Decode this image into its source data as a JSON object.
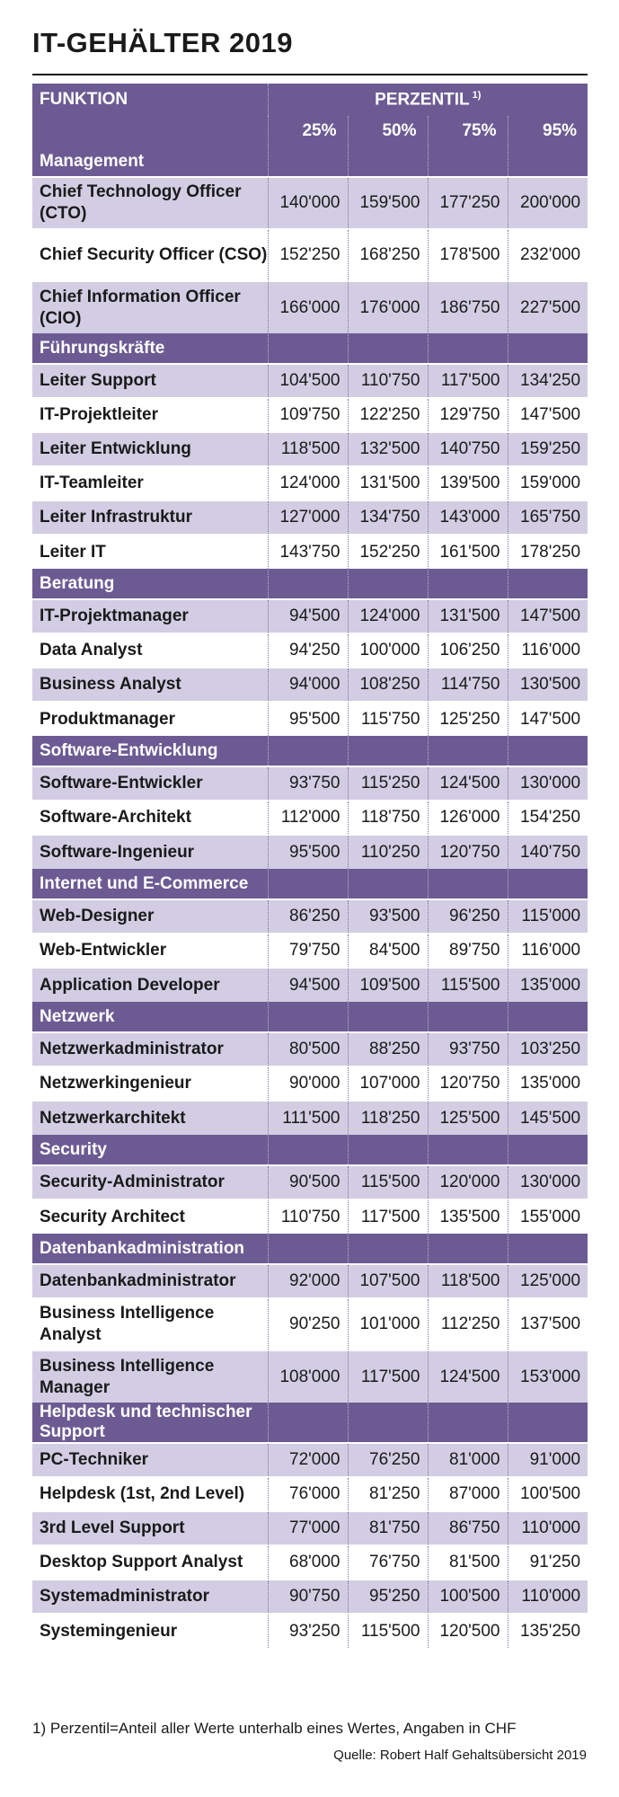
{
  "title": "IT-GEHÄLTER 2019",
  "header": {
    "function_label": "FUNKTION",
    "percentile_label": "PERZENTIL",
    "footnote_mark": "1)",
    "percentiles": [
      "25%",
      "50%",
      "75%",
      "95%"
    ]
  },
  "categories": [
    {
      "name": "Management",
      "rows": [
        {
          "function": "Chief Technology Officer (CTO)",
          "values": [
            "140'000",
            "159'500",
            "177'250",
            "200'000"
          ]
        },
        {
          "function": "Chief Security Officer (CSO)",
          "values": [
            "152'250",
            "168'250",
            "178'500",
            "232'000"
          ]
        },
        {
          "function": "Chief Information Officer (CIO)",
          "values": [
            "166'000",
            "176'000",
            "186'750",
            "227'500"
          ]
        }
      ]
    },
    {
      "name": "Führungskräfte",
      "rows": [
        {
          "function": "Leiter Support",
          "values": [
            "104'500",
            "110'750",
            "117'500",
            "134'250"
          ]
        },
        {
          "function": "IT-Projektleiter",
          "values": [
            "109'750",
            "122'250",
            "129'750",
            "147'500"
          ]
        },
        {
          "function": "Leiter Entwicklung",
          "values": [
            "118'500",
            "132'500",
            "140'750",
            "159'250"
          ]
        },
        {
          "function": "IT-Teamleiter",
          "values": [
            "124'000",
            "131'500",
            "139'500",
            "159'000"
          ]
        },
        {
          "function": "Leiter Infrastruktur",
          "values": [
            "127'000",
            "134'750",
            "143'000",
            "165'750"
          ]
        },
        {
          "function": "Leiter IT",
          "values": [
            "143'750",
            "152'250",
            "161'500",
            "178'250"
          ]
        }
      ]
    },
    {
      "name": "Beratung",
      "rows": [
        {
          "function": "IT-Projektmanager",
          "values": [
            "94'500",
            "124'000",
            "131'500",
            "147'500"
          ]
        },
        {
          "function": "Data Analyst",
          "values": [
            "94'250",
            "100'000",
            "106'250",
            "116'000"
          ]
        },
        {
          "function": "Business Analyst",
          "values": [
            "94'000",
            "108'250",
            "114'750",
            "130'500"
          ]
        },
        {
          "function": "Produktmanager",
          "values": [
            "95'500",
            "115'750",
            "125'250",
            "147'500"
          ]
        }
      ]
    },
    {
      "name": "Software-Entwicklung",
      "rows": [
        {
          "function": "Software-Entwickler",
          "values": [
            "93'750",
            "115'250",
            "124'500",
            "130'000"
          ]
        },
        {
          "function": "Software-Architekt",
          "values": [
            "112'000",
            "118'750",
            "126'000",
            "154'250"
          ]
        },
        {
          "function": "Software-Ingenieur",
          "values": [
            "95'500",
            "110'250",
            "120'750",
            "140'750"
          ]
        }
      ]
    },
    {
      "name": "Internet und E-Commerce",
      "rows": [
        {
          "function": "Web-Designer",
          "values": [
            "86'250",
            "93'500",
            "96'250",
            "115'000"
          ]
        },
        {
          "function": "Web-Entwickler",
          "values": [
            "79'750",
            "84'500",
            "89'750",
            "116'000"
          ]
        },
        {
          "function": "Application Developer",
          "values": [
            "94'500",
            "109'500",
            "115'500",
            "135'000"
          ]
        }
      ]
    },
    {
      "name": "Netzwerk",
      "rows": [
        {
          "function": "Netzwerkadministrator",
          "values": [
            "80'500",
            "88'250",
            "93'750",
            "103'250"
          ]
        },
        {
          "function": "Netzwerkingenieur",
          "values": [
            "90'000",
            "107'000",
            "120'750",
            "135'000"
          ]
        },
        {
          "function": "Netzwerkarchitekt",
          "values": [
            "111'500",
            "118'250",
            "125'500",
            "145'500"
          ]
        }
      ]
    },
    {
      "name": "Security",
      "rows": [
        {
          "function": "Security-Administrator",
          "values": [
            "90'500",
            "115'500",
            "120'000",
            "130'000"
          ]
        },
        {
          "function": "Security Architect",
          "values": [
            "110'750",
            "117'500",
            "135'500",
            "155'000"
          ]
        }
      ]
    },
    {
      "name": "Datenbankadministration",
      "rows": [
        {
          "function": "Datenbankadministrator",
          "values": [
            "92'000",
            "107'500",
            "118'500",
            "125'000"
          ]
        },
        {
          "function": "Business Intelligence Analyst",
          "values": [
            "90'250",
            "101'000",
            "112'250",
            "137'500"
          ]
        },
        {
          "function": "Business Intelligence Manager",
          "values": [
            "108'000",
            "117'500",
            "124'500",
            "153'000"
          ]
        }
      ]
    },
    {
      "name": "Helpdesk und technischer Support",
      "rows": [
        {
          "function": "PC-Techniker",
          "values": [
            "72'000",
            "76'250",
            "81'000",
            "91'000"
          ]
        },
        {
          "function": "Helpdesk (1st, 2nd Level)",
          "values": [
            "76'000",
            "81'250",
            "87'000",
            "100'500"
          ]
        },
        {
          "function": "3rd Level Support",
          "values": [
            "77'000",
            "81'750",
            "86'750",
            "110'000"
          ]
        },
        {
          "function": "Desktop Support Analyst",
          "values": [
            "68'000",
            "76'750",
            "81'500",
            "91'250"
          ]
        },
        {
          "function": "Systemadministrator",
          "values": [
            "90'750",
            "95'250",
            "100'500",
            "110'000"
          ]
        },
        {
          "function": "Systemingenieur",
          "values": [
            "93'250",
            "115'500",
            "120'500",
            "135'250"
          ]
        }
      ]
    }
  ],
  "footnote": "1) Perzentil=Anteil aller Werte unterhalb eines Wertes, Angaben in CHF",
  "source": "Quelle: Robert Half Gehaltsübersicht 2019"
}
